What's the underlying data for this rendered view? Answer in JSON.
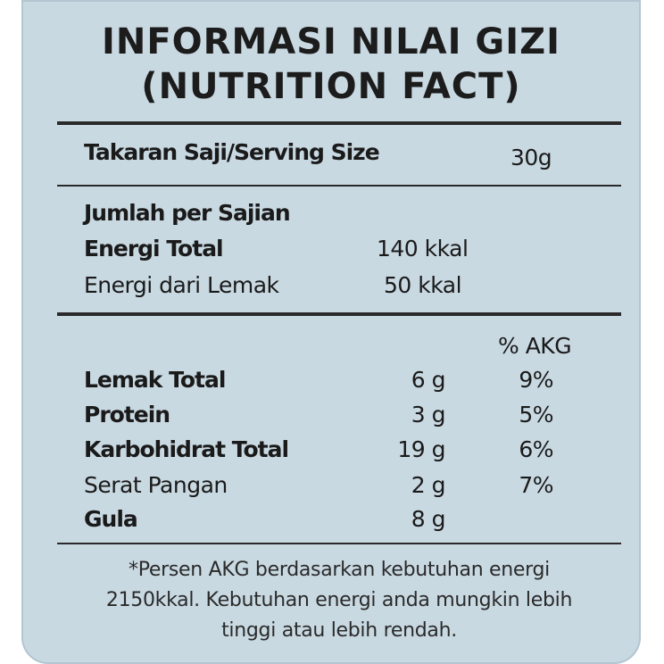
{
  "title": {
    "line1": "INFORMASI NILAI GIZI",
    "line2": "(NUTRITION FACT)"
  },
  "serving": {
    "label": "Takaran Saji/Serving Size",
    "value": "30g"
  },
  "per_serving": {
    "heading": "Jumlah per Sajian",
    "energy_total_label": "Energi Total",
    "energy_total_value": "140 kkal",
    "energy_fat_label": "Energi dari Lemak",
    "energy_fat_value": "50 kkal"
  },
  "nutrients": {
    "akg_header": "% AKG",
    "rows": [
      {
        "label": "Lemak Total",
        "amount": "6 g",
        "akg": "9%"
      },
      {
        "label": "Protein",
        "amount": "3 g",
        "akg": "5%"
      },
      {
        "label": "Karbohidrat Total",
        "amount": "19 g",
        "akg": "6%"
      },
      {
        "label": "Serat Pangan",
        "amount": "2 g",
        "akg": "7%"
      },
      {
        "label": "Gula",
        "amount": "8 g",
        "akg": ""
      }
    ]
  },
  "footnote": {
    "line1": "*Persen AKG berdasarkan kebutuhan energi",
    "line2": "2150kkal. Kebutuhan energi anda mungkin lebih",
    "line3": "tinggi atau lebih rendah."
  }
}
